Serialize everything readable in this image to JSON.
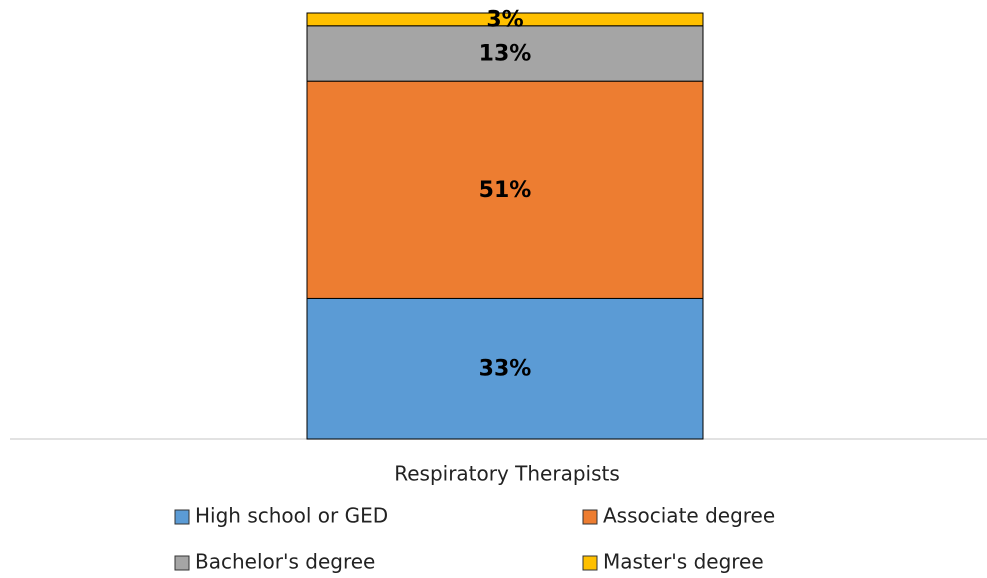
{
  "chart_data": {
    "type": "stacked_bar",
    "categories": [
      "Respiratory Therapists"
    ],
    "series": [
      {
        "name": "High school or GED",
        "color": "#5b9bd5",
        "values": [
          33
        ],
        "value_labels": [
          "33%"
        ]
      },
      {
        "name": "Associate degree",
        "color": "#ed7d31",
        "values": [
          51
        ],
        "value_labels": [
          "51%"
        ]
      },
      {
        "name": "Bachelor's degree",
        "color": "#a5a5a5",
        "values": [
          13
        ],
        "value_labels": [
          "13%"
        ]
      },
      {
        "name": "Master's degree",
        "color": "#ffc000",
        "values": [
          3
        ],
        "value_labels": [
          "3%"
        ]
      }
    ],
    "legend": "bottom"
  }
}
